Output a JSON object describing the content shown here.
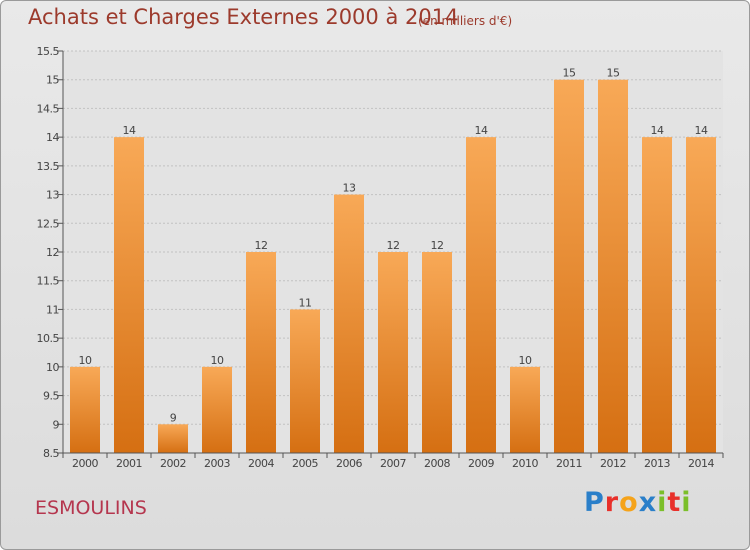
{
  "header": {
    "title": "Achats et Charges Externes 2000 à 2014",
    "subtitle": "(en milliers d'€)"
  },
  "footer": {
    "commune": "ESMOULINS",
    "logo_text": "Proxiti",
    "logo_letters": [
      {
        "char": "P",
        "color": "#2a7fc9"
      },
      {
        "char": "r",
        "color": "#e8302a"
      },
      {
        "char": "o",
        "color": "#f5a31a"
      },
      {
        "char": "x",
        "color": "#2a7fc9"
      },
      {
        "char": "i",
        "color": "#7bbf2a"
      },
      {
        "char": "t",
        "color": "#e8302a"
      },
      {
        "char": "i",
        "color": "#7bbf2a"
      }
    ]
  },
  "colors": {
    "bar_light": "#f8a957",
    "bar_dark": "#d56f12",
    "title": "#9c3a2c",
    "commune": "#b5364e"
  },
  "chart_data": {
    "type": "bar",
    "title": "Achats et Charges Externes 2000 à 2014",
    "subtitle": "(en milliers d'€)",
    "categories": [
      "2000",
      "2001",
      "2002",
      "2003",
      "2004",
      "2005",
      "2006",
      "2007",
      "2008",
      "2009",
      "2010",
      "2011",
      "2012",
      "2013",
      "2014"
    ],
    "values": [
      10,
      14,
      9,
      10,
      12,
      11,
      13,
      12,
      12,
      14,
      10,
      15,
      15,
      14,
      14
    ],
    "ylim": [
      8.5,
      15.5
    ],
    "yticks": [
      8.5,
      9,
      9.5,
      10,
      10.5,
      11,
      11.5,
      12,
      12.5,
      13,
      13.5,
      14,
      14.5,
      15,
      15.5
    ],
    "xlabel": "",
    "ylabel": "",
    "grid": "horizontal",
    "legend": "none"
  }
}
